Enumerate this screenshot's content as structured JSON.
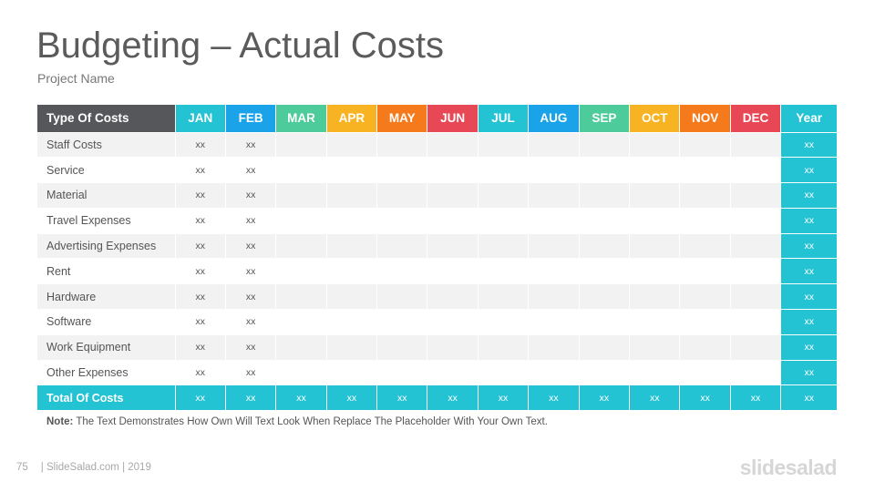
{
  "slide": {
    "title": "Budgeting – Actual Costs",
    "subtitle": "Project Name"
  },
  "table": {
    "header_type": "Type Of Costs",
    "months": [
      {
        "label": "JAN",
        "color": "#23c3d4"
      },
      {
        "label": "FEB",
        "color": "#1aa3e8"
      },
      {
        "label": "MAR",
        "color": "#4ecb9a"
      },
      {
        "label": "APR",
        "color": "#f8b322"
      },
      {
        "label": "MAY",
        "color": "#f57a1c"
      },
      {
        "label": "JUN",
        "color": "#e84856"
      },
      {
        "label": "JUL",
        "color": "#23c3d4"
      },
      {
        "label": "AUG",
        "color": "#1aa3e8"
      },
      {
        "label": "SEP",
        "color": "#4ecb9a"
      },
      {
        "label": "OCT",
        "color": "#f8b322"
      },
      {
        "label": "NOV",
        "color": "#f57a1c"
      },
      {
        "label": "DEC",
        "color": "#e84856"
      }
    ],
    "year_label": "Year",
    "year_color": "#23c3d4",
    "rows": [
      {
        "label": "Staff Costs",
        "values": [
          "xx",
          "xx",
          "",
          "",
          "",
          "",
          "",
          "",
          "",
          "",
          "",
          ""
        ],
        "year": "xx"
      },
      {
        "label": "Service",
        "values": [
          "xx",
          "xx",
          "",
          "",
          "",
          "",
          "",
          "",
          "",
          "",
          "",
          ""
        ],
        "year": "xx"
      },
      {
        "label": "Material",
        "values": [
          "xx",
          "xx",
          "",
          "",
          "",
          "",
          "",
          "",
          "",
          "",
          "",
          ""
        ],
        "year": "xx"
      },
      {
        "label": "Travel Expenses",
        "values": [
          "xx",
          "xx",
          "",
          "",
          "",
          "",
          "",
          "",
          "",
          "",
          "",
          ""
        ],
        "year": "xx"
      },
      {
        "label": "Advertising Expenses",
        "values": [
          "xx",
          "xx",
          "",
          "",
          "",
          "",
          "",
          "",
          "",
          "",
          "",
          ""
        ],
        "year": "xx"
      },
      {
        "label": "Rent",
        "values": [
          "xx",
          "xx",
          "",
          "",
          "",
          "",
          "",
          "",
          "",
          "",
          "",
          ""
        ],
        "year": "xx"
      },
      {
        "label": "Hardware",
        "values": [
          "xx",
          "xx",
          "",
          "",
          "",
          "",
          "",
          "",
          "",
          "",
          "",
          ""
        ],
        "year": "xx"
      },
      {
        "label": "Software",
        "values": [
          "xx",
          "xx",
          "",
          "",
          "",
          "",
          "",
          "",
          "",
          "",
          "",
          ""
        ],
        "year": "xx"
      },
      {
        "label": "Work Equipment",
        "values": [
          "xx",
          "xx",
          "",
          "",
          "",
          "",
          "",
          "",
          "",
          "",
          "",
          ""
        ],
        "year": "xx"
      },
      {
        "label": "Other Expenses",
        "values": [
          "xx",
          "xx",
          "",
          "",
          "",
          "",
          "",
          "",
          "",
          "",
          "",
          ""
        ],
        "year": "xx"
      }
    ],
    "total": {
      "label": "Total Of Costs",
      "values": [
        "xx",
        "xx",
        "xx",
        "xx",
        "xx",
        "xx",
        "xx",
        "xx",
        "xx",
        "xx",
        "xx",
        "xx"
      ],
      "year": "xx"
    }
  },
  "note": {
    "prefix": "Note:",
    "text": " The Text Demonstrates How Own Will Text Look When Replace The Placeholder With Your Own Text."
  },
  "footer": {
    "page_number": "75",
    "source": "| SlideSalad.com | 2019",
    "logo": "slidesalad"
  }
}
